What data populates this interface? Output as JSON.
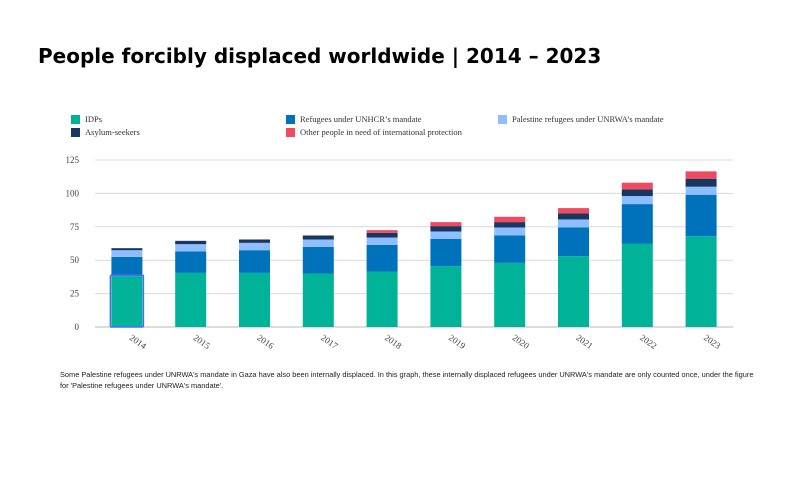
{
  "title": "People forcibly displaced worldwide | 2014 – 2023",
  "footnote": "Some Palestine refugees under UNRWA's mandate in Gaza have also been internally displaced. In this graph, these internally displaced refugees under UNRWA's mandate are only counted once, under the figure for 'Palestine refugees under UNRWA's mandate'.",
  "legend": [
    {
      "label": "IDPs",
      "color": "#00b398"
    },
    {
      "label": "Refugees under UNHCR’s mandate",
      "color": "#0072bc"
    },
    {
      "label": "Palestine refugees under UNRWA’s mandate",
      "color": "#8ebeff"
    },
    {
      "label": "Asylum-seekers",
      "color": "#18375f"
    },
    {
      "label": "Other people in need of international protection",
      "color": "#ef4a60"
    }
  ],
  "chart_data": {
    "type": "bar",
    "stacked": true,
    "title": "People forcibly displaced worldwide | 2014 – 2023",
    "categories": [
      "2014",
      "2015",
      "2016",
      "2017",
      "2018",
      "2019",
      "2020",
      "2021",
      "2022",
      "2023"
    ],
    "yticks": [
      "0",
      "25",
      "50",
      "75",
      "100",
      "125"
    ],
    "ylim": [
      0,
      125
    ],
    "grid": true,
    "legend_position": "top",
    "series": [
      {
        "name": "IDPs",
        "color": "#00b398",
        "values": [
          38,
          40.5,
          40.5,
          40,
          41.5,
          45.5,
          48,
          53,
          62.5,
          68
        ]
      },
      {
        "name": "Refugees under UNHCR’s mandate",
        "color": "#0072bc",
        "values": [
          14.5,
          16,
          17,
          20,
          20,
          20.5,
          20.5,
          21.5,
          29.5,
          31
        ]
      },
      {
        "name": "Palestine refugees under UNRWA’s mandate",
        "color": "#8ebeff",
        "values": [
          5,
          5.5,
          5.5,
          5.5,
          5.5,
          5.5,
          6,
          6,
          6,
          6
        ]
      },
      {
        "name": "Asylum-seekers",
        "color": "#18375f",
        "values": [
          1.5,
          2.5,
          2.5,
          3,
          3.5,
          4,
          4,
          4.5,
          5,
          6
        ]
      },
      {
        "name": "Other people in need of international protection",
        "color": "#ef4a60",
        "values": [
          0,
          0,
          0,
          0,
          2,
          3,
          4,
          4,
          5,
          5.5
        ]
      }
    ]
  }
}
